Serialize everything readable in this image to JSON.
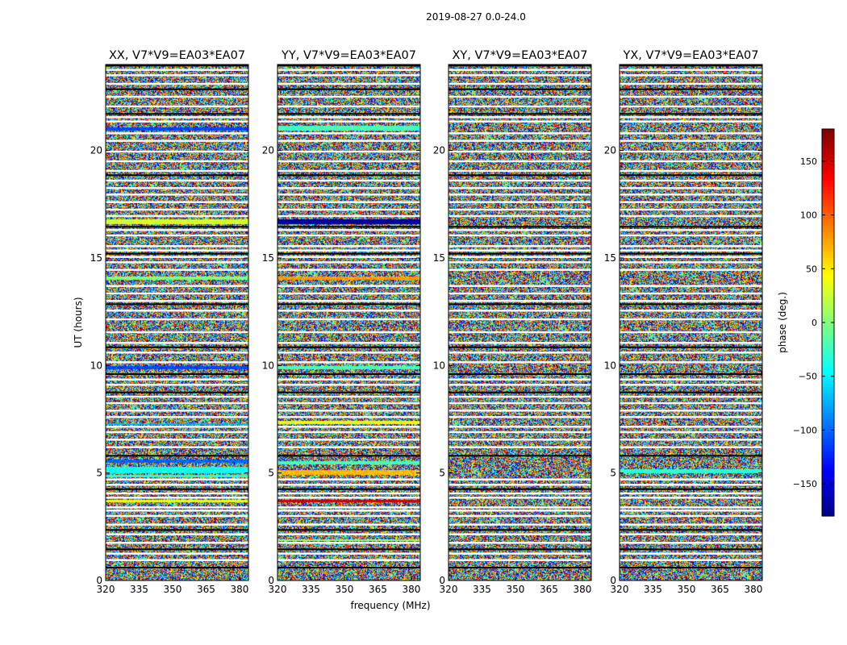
{
  "figure_title": "2019-08-27 0.0-24.0",
  "xlabel": "frequency (MHz)",
  "ylabel": "UT (hours)",
  "colorbar_label": "phase (deg.)",
  "chart_data": [
    {
      "type": "heatmap",
      "title": "XX, V7*V9=EA03*EA07",
      "x_ticks": [
        320,
        335,
        350,
        365,
        380
      ],
      "y_ticks": [
        0,
        5,
        10,
        15,
        20
      ],
      "xlim": [
        320,
        384
      ],
      "ylim": [
        0,
        24
      ],
      "coherent_bands": [
        {
          "t0": 20.95,
          "t1": 21.1,
          "phase": -110
        },
        {
          "t0": 16.6,
          "t1": 16.8,
          "phase": 30
        },
        {
          "t0": 14.0,
          "t1": 14.15,
          "phase": 0
        },
        {
          "t0": 9.85,
          "t1": 10.0,
          "phase": -110
        },
        {
          "t0": 7.25,
          "t1": 7.35,
          "phase": -70
        },
        {
          "t0": 5.5,
          "t1": 5.65,
          "phase": -100
        },
        {
          "t0": 5.0,
          "t1": 5.3,
          "phase": -40
        },
        {
          "t0": 4.8,
          "t1": 4.95,
          "phase": -30
        },
        {
          "t0": 3.65,
          "t1": 3.75,
          "phase": 40
        }
      ]
    },
    {
      "type": "heatmap",
      "title": "YY, V7*V9=EA03*EA07",
      "x_ticks": [
        320,
        335,
        350,
        365,
        380
      ],
      "y_ticks": [
        0,
        5,
        10,
        15,
        20
      ],
      "xlim": [
        320,
        384
      ],
      "ylim": [
        0,
        24
      ],
      "coherent_bands": [
        {
          "t0": 20.95,
          "t1": 21.15,
          "phase": -20
        },
        {
          "t0": 16.6,
          "t1": 16.8,
          "phase": -170
        },
        {
          "t0": 14.0,
          "t1": 14.15,
          "phase": 80
        },
        {
          "t0": 9.85,
          "t1": 10.0,
          "phase": -20
        },
        {
          "t0": 7.3,
          "t1": 7.45,
          "phase": 40
        },
        {
          "t0": 5.4,
          "t1": 5.55,
          "phase": -20
        },
        {
          "t0": 4.95,
          "t1": 5.15,
          "phase": 70
        },
        {
          "t0": 3.65,
          "t1": 3.75,
          "phase": 150
        },
        {
          "t0": 1.85,
          "t1": 1.95,
          "phase": 10
        }
      ]
    },
    {
      "type": "heatmap",
      "title": "XY, V7*V9=EA03*EA07",
      "x_ticks": [
        320,
        335,
        350,
        365,
        380
      ],
      "y_ticks": [
        0,
        5,
        10,
        15,
        20
      ],
      "xlim": [
        320,
        384
      ],
      "ylim": [
        0,
        24
      ],
      "coherent_bands": []
    },
    {
      "type": "heatmap",
      "title": "YX, V7*V9=EA03*EA07",
      "x_ticks": [
        320,
        335,
        350,
        365,
        380
      ],
      "y_ticks": [
        0,
        5,
        10,
        15,
        20
      ],
      "xlim": [
        320,
        384
      ],
      "ylim": [
        0,
        24
      ],
      "coherent_bands": [
        {
          "t0": 5.0,
          "t1": 5.2,
          "phase": -30
        }
      ]
    }
  ],
  "colorbar": {
    "colormap": "jet",
    "range": [
      -180,
      180
    ],
    "ticks": [
      -150,
      -100,
      -50,
      0,
      50,
      100,
      150
    ],
    "tick_labels": [
      "−150",
      "−100",
      "−50",
      "0",
      "50",
      "100",
      "150"
    ]
  },
  "flagged_rows_hours": [
    0.95,
    1.25,
    1.75,
    2.15,
    2.6,
    3.0,
    3.25,
    3.4,
    3.85,
    4.05,
    4.45,
    4.7,
    6.2,
    6.55,
    6.9,
    7.15,
    7.6,
    7.9,
    8.25,
    8.55,
    9.1,
    9.35,
    10.15,
    10.6,
    11.05,
    11.55,
    12.15,
    12.55,
    13.0,
    13.35,
    13.7,
    14.45,
    14.8,
    15.05,
    15.35,
    15.55,
    16.05,
    16.3,
    16.95,
    17.25,
    17.6,
    17.95,
    18.25,
    18.6,
    19.05,
    19.5,
    19.95,
    20.45,
    20.8,
    21.35,
    21.55,
    22.05,
    22.5,
    23.1,
    23.5,
    23.75
  ],
  "dark_rows_hours": [
    0.6,
    1.45,
    2.35,
    4.25,
    5.8,
    8.75,
    9.6,
    10.85,
    12.85,
    15.2,
    16.45,
    18.85,
    21.7,
    22.85,
    23.95
  ]
}
